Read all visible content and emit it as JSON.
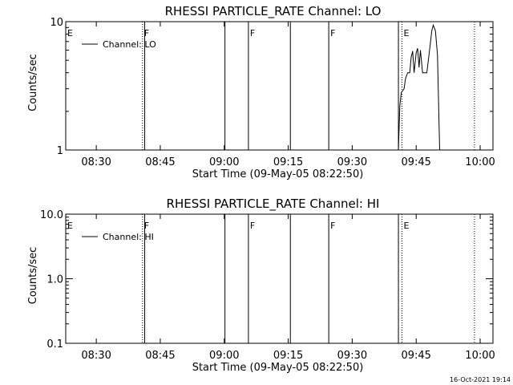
{
  "footer": {
    "timestamp": "16-Oct-2021 19:14"
  },
  "chart_data": [
    {
      "type": "line",
      "title": "RHESSI PARTICLE_RATE Channel: LO",
      "xlabel": "Start Time (09-May-05 08:22:50)",
      "ylabel": "Counts/sec",
      "yscale": "log",
      "xlim": [
        "08:22:50",
        "10:03:00"
      ],
      "ylim": [
        1,
        10
      ],
      "x_ticks": [
        "08:30",
        "08:45",
        "09:00",
        "09:15",
        "09:30",
        "09:45",
        "10:00"
      ],
      "y_ticks": [
        {
          "value": 1,
          "label": "1"
        },
        {
          "value": 10,
          "label": "10"
        }
      ],
      "legend": {
        "position": "top-left",
        "entries": [
          "Channel: LO"
        ]
      },
      "flag_markers": [
        {
          "time": "08:22:50",
          "label": "E",
          "style": "dotted"
        },
        {
          "time": "08:40:50",
          "label": "F",
          "style": "dotted"
        },
        {
          "time": "08:41:20",
          "label": "",
          "style": "solid"
        },
        {
          "time": "09:00:10",
          "label": "",
          "style": "solid"
        },
        {
          "time": "09:05:40",
          "label": "F",
          "style": "solid"
        },
        {
          "time": "09:15:30",
          "label": "",
          "style": "solid"
        },
        {
          "time": "09:24:30",
          "label": "F",
          "style": "solid"
        },
        {
          "time": "09:40:50",
          "label": "",
          "style": "solid"
        },
        {
          "time": "09:41:40",
          "label": "E",
          "style": "dotted"
        },
        {
          "time": "09:58:40",
          "label": "",
          "style": "dotted"
        }
      ],
      "series": [
        {
          "name": "Channel: LO",
          "segments": [
            [
              [
                "09:40:50",
                1.0
              ],
              [
                "09:41:10",
                2.2
              ],
              [
                "09:41:30",
                2.8
              ],
              [
                "09:42:10",
                3.0
              ],
              [
                "09:42:30",
                3.6
              ],
              [
                "09:43:00",
                4.0
              ],
              [
                "09:43:30",
                4.0
              ],
              [
                "09:43:50",
                5.3
              ],
              [
                "09:44:10",
                5.9
              ],
              [
                "09:44:30",
                4.0
              ],
              [
                "09:45:00",
                5.7
              ],
              [
                "09:45:20",
                6.2
              ],
              [
                "09:45:40",
                4.4
              ],
              [
                "09:46:00",
                6.0
              ],
              [
                "09:46:30",
                4.0
              ],
              [
                "09:47:30",
                4.0
              ],
              [
                "09:48:00",
                5.5
              ],
              [
                "09:48:40",
                8.5
              ],
              [
                "09:49:00",
                9.4
              ],
              [
                "09:49:30",
                8.5
              ],
              [
                "09:50:00",
                5.5
              ],
              [
                "09:50:30",
                1.0
              ]
            ]
          ]
        }
      ]
    },
    {
      "type": "line",
      "title": "RHESSI PARTICLE_RATE Channel: HI",
      "xlabel": "Start Time (09-May-05 08:22:50)",
      "ylabel": "Counts/sec",
      "yscale": "log",
      "xlim": [
        "08:22:50",
        "10:03:00"
      ],
      "ylim": [
        0.1,
        10
      ],
      "x_ticks": [
        "08:30",
        "08:45",
        "09:00",
        "09:15",
        "09:30",
        "09:45",
        "10:00"
      ],
      "y_ticks": [
        {
          "value": 0.1,
          "label": "0.1"
        },
        {
          "value": 1,
          "label": "1.0"
        },
        {
          "value": 10,
          "label": "10.0"
        }
      ],
      "legend": {
        "position": "top-left",
        "entries": [
          "Channel: HI"
        ]
      },
      "flag_markers": [
        {
          "time": "08:22:50",
          "label": "E",
          "style": "dotted"
        },
        {
          "time": "08:40:50",
          "label": "F",
          "style": "dotted"
        },
        {
          "time": "08:41:20",
          "label": "",
          "style": "solid"
        },
        {
          "time": "09:00:10",
          "label": "",
          "style": "solid"
        },
        {
          "time": "09:05:40",
          "label": "F",
          "style": "solid"
        },
        {
          "time": "09:15:30",
          "label": "",
          "style": "solid"
        },
        {
          "time": "09:24:30",
          "label": "F",
          "style": "solid"
        },
        {
          "time": "09:40:50",
          "label": "",
          "style": "solid"
        },
        {
          "time": "09:41:40",
          "label": "E",
          "style": "dotted"
        },
        {
          "time": "09:58:40",
          "label": "",
          "style": "dotted"
        }
      ],
      "series": [
        {
          "name": "Channel: HI",
          "segments": []
        }
      ]
    }
  ]
}
